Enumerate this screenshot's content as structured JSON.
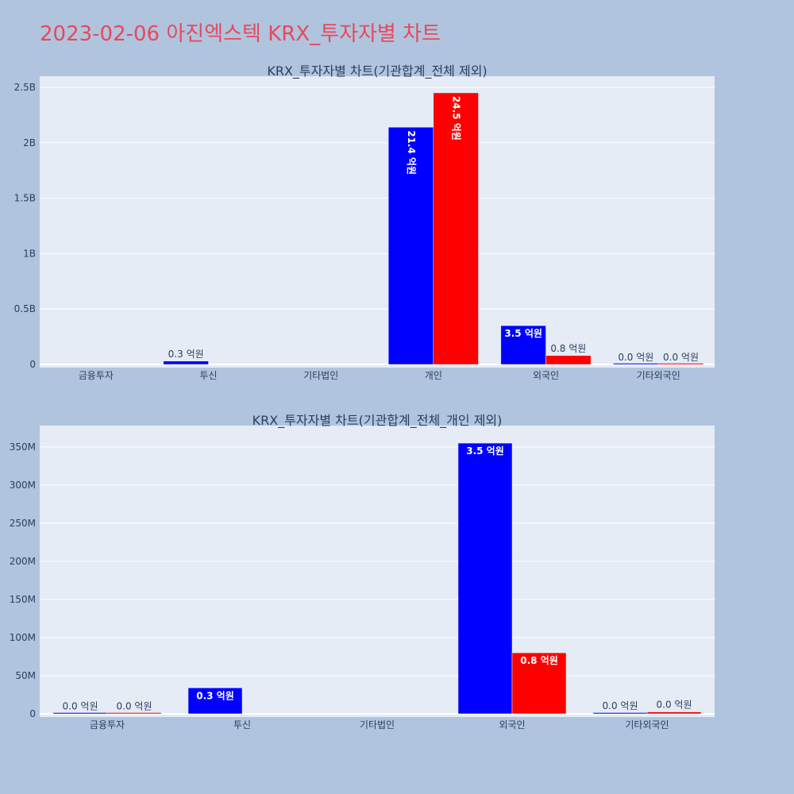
{
  "page": {
    "title": "2023-02-06 아진엑스텍 KRX_투자자별 차트",
    "title_color": "#e8485b",
    "background": "#b0c4de",
    "plot_background": "#e5ecf6"
  },
  "chart_data": [
    {
      "type": "bar",
      "title": "KRX_투자자별 차트(기관합계_전체 제외)",
      "categories": [
        "금융투자",
        "투신",
        "기타법인",
        "개인",
        "외국인",
        "기타외국인"
      ],
      "ylim": [
        0,
        2600000000
      ],
      "yticks": [
        0,
        500000000,
        1000000000,
        1500000000,
        2000000000,
        2500000000
      ],
      "ytick_labels": [
        "0",
        "0.5B",
        "1B",
        "1.5B",
        "2B",
        "2.5B"
      ],
      "grid": true,
      "series": [
        {
          "color": "#0000ff",
          "values": [
            null,
            30000000,
            null,
            2140000000,
            350000000,
            1000000
          ],
          "labels": [
            "",
            "0.3 억원",
            "",
            "21.4 억원",
            "3.5 억원",
            "0.0 억원"
          ]
        },
        {
          "color": "#ff0000",
          "values": [
            null,
            null,
            null,
            2450000000,
            80000000,
            1000000
          ],
          "labels": [
            "",
            "",
            "",
            "24.5 억원",
            "0.8 억원",
            "0.0 억원"
          ]
        }
      ]
    },
    {
      "type": "bar",
      "title": "KRX_투자자별 차트(기관합계_전체_개인 제외)",
      "categories": [
        "금융투자",
        "투신",
        "기타법인",
        "외국인",
        "기타외국인"
      ],
      "ylim": [
        0,
        378000000
      ],
      "yticks": [
        0,
        50000000,
        100000000,
        150000000,
        200000000,
        250000000,
        300000000,
        350000000
      ],
      "ytick_labels": [
        "0",
        "50M",
        "100M",
        "150M",
        "200M",
        "250M",
        "300M",
        "350M"
      ],
      "grid": true,
      "series": [
        {
          "color": "#0000ff",
          "values": [
            400000,
            34000000,
            null,
            355000000,
            1000000
          ],
          "labels": [
            "0.0 억원",
            "0.3 억원",
            "",
            "3.5 억원",
            "0.0 억원"
          ]
        },
        {
          "color": "#ff0000",
          "values": [
            300000,
            null,
            null,
            80000000,
            2500000
          ],
          "labels": [
            "0.0 억원",
            "",
            "",
            "0.8 억원",
            "0.0 억원"
          ]
        }
      ]
    }
  ]
}
